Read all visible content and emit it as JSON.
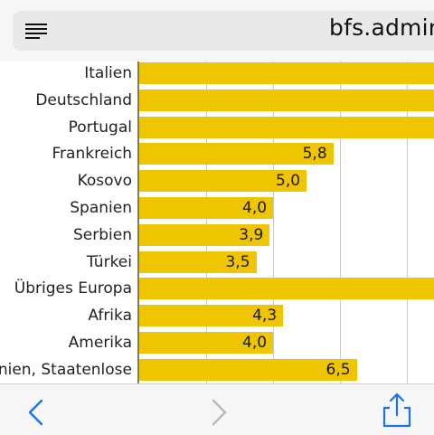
{
  "browser": {
    "url_text": "bfs.admin"
  },
  "icons": {
    "menu": "reader-menu-icon",
    "back": "back-chevron-icon",
    "forward": "forward-chevron-icon",
    "share": "share-icon"
  },
  "colors": {
    "bar": "#efc400",
    "accent": "#1a73e8"
  },
  "chart_data": {
    "type": "bar",
    "orientation": "horizontal",
    "categories": [
      "Italien",
      "Deutschland",
      "Portugal",
      "Frankreich",
      "Kosovo",
      "Spanien",
      "Serbien",
      "Türkei",
      "Übriges Europa",
      "Afrika",
      "Amerika",
      "nien, Staatenlose"
    ],
    "values": [
      null,
      null,
      null,
      5.8,
      5.0,
      4.0,
      3.9,
      3.5,
      null,
      4.3,
      4.0,
      6.5
    ],
    "value_labels": [
      "",
      "",
      "",
      "5,8",
      "5,0",
      "4,0",
      "3,9",
      "3,5",
      "",
      "4,3",
      "4,0",
      "6,5"
    ],
    "bars_extend_beyond_view": [
      "Italien",
      "Deutschland",
      "Portugal",
      "Übriges Europa"
    ],
    "xlim": [
      0,
      11
    ],
    "grid": true
  }
}
